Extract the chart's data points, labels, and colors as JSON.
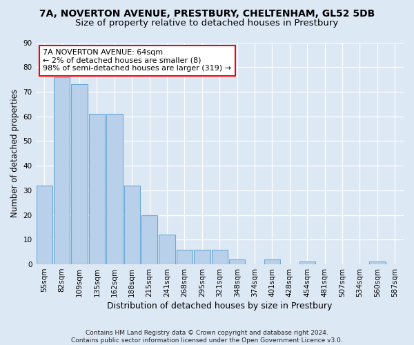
{
  "title1": "7A, NOVERTON AVENUE, PRESTBURY, CHELTENHAM, GL52 5DB",
  "title2": "Size of property relative to detached houses in Prestbury",
  "xlabel": "Distribution of detached houses by size in Prestbury",
  "ylabel": "Number of detached properties",
  "bar_labels": [
    "55sqm",
    "82sqm",
    "109sqm",
    "135sqm",
    "162sqm",
    "188sqm",
    "215sqm",
    "241sqm",
    "268sqm",
    "295sqm",
    "321sqm",
    "348sqm",
    "374sqm",
    "401sqm",
    "428sqm",
    "454sqm",
    "481sqm",
    "507sqm",
    "534sqm",
    "560sqm",
    "587sqm"
  ],
  "bar_values": [
    32,
    76,
    73,
    61,
    61,
    32,
    20,
    12,
    6,
    6,
    6,
    2,
    0,
    2,
    0,
    1,
    0,
    0,
    0,
    1,
    0
  ],
  "bar_color": "#b8d0ea",
  "bar_edge_color": "#6aaad4",
  "annotation_text": "7A NOVERTON AVENUE: 64sqm\n← 2% of detached houses are smaller (8)\n98% of semi-detached houses are larger (319) →",
  "annotation_box_color": "white",
  "annotation_box_edge_color": "red",
  "ylim": [
    0,
    90
  ],
  "yticks": [
    0,
    10,
    20,
    30,
    40,
    50,
    60,
    70,
    80,
    90
  ],
  "bg_color": "#dde8f5",
  "plot_bg_color": "#dde8f5",
  "grid_color": "white",
  "footer": "Contains HM Land Registry data © Crown copyright and database right 2024.\nContains public sector information licensed under the Open Government Licence v3.0.",
  "title1_fontsize": 10,
  "title2_fontsize": 9.5,
  "xlabel_fontsize": 9,
  "ylabel_fontsize": 8.5,
  "tick_fontsize": 7.5,
  "footer_fontsize": 6.5
}
